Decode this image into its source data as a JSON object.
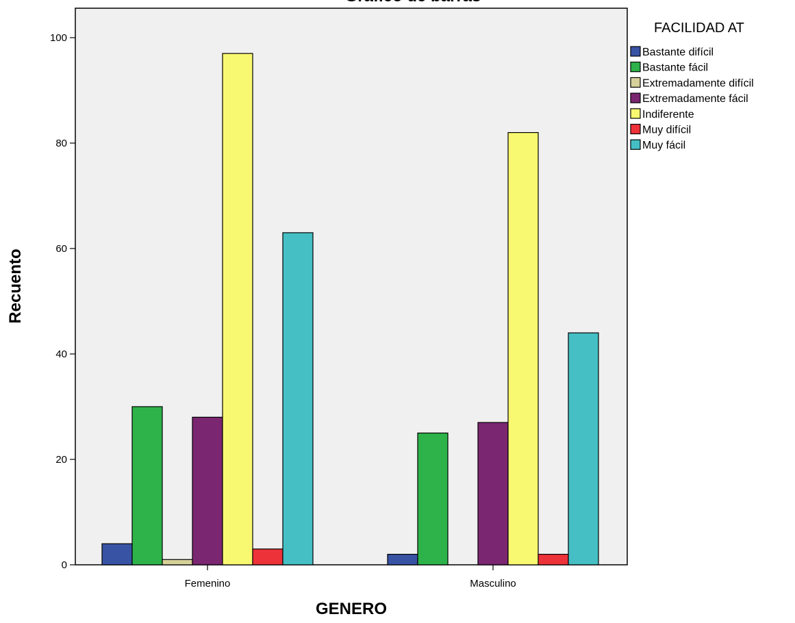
{
  "chart_data": {
    "type": "bar",
    "title": "Gráfico de barras",
    "xlabel": "GENERO",
    "ylabel": "Recuento",
    "categories": [
      "Femenino",
      "Masculino"
    ],
    "ylim": [
      0,
      100
    ],
    "yticks": [
      0,
      20,
      40,
      60,
      80,
      100
    ],
    "grid": false,
    "legend_title": "FACILIDAD AT",
    "legend_position": "right",
    "series": [
      {
        "name": "Bastante difícil",
        "color": "#3953a4",
        "values": [
          4,
          2
        ]
      },
      {
        "name": "Bastante fácil",
        "color": "#2db34a",
        "values": [
          30,
          25
        ]
      },
      {
        "name": "Extremadamente difícil",
        "color": "#d6d09a",
        "values": [
          1,
          0
        ]
      },
      {
        "name": "Extremadamente fácil",
        "color": "#7b2671",
        "values": [
          28,
          27
        ]
      },
      {
        "name": "Indiferente",
        "color": "#f9f871",
        "values": [
          97,
          82
        ]
      },
      {
        "name": "Muy difícil",
        "color": "#ee3239",
        "values": [
          3,
          2
        ]
      },
      {
        "name": "Muy fácil",
        "color": "#45bfc4",
        "values": [
          63,
          44
        ]
      }
    ],
    "plot_background": "#f0f0f0"
  }
}
